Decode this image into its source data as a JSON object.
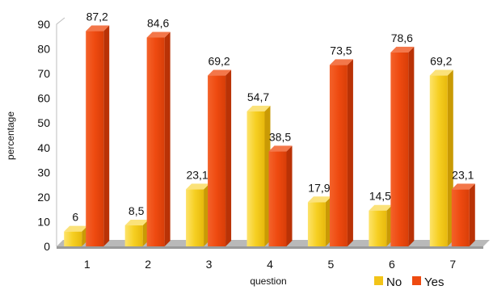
{
  "chart_data": {
    "type": "bar",
    "categories": [
      "1",
      "2",
      "3",
      "4",
      "5",
      "6",
      "7"
    ],
    "series": [
      {
        "name": "No",
        "values": [
          6,
          8.5,
          23.1,
          54.7,
          17.9,
          14.5,
          69.2
        ],
        "labels": [
          "6",
          "8,5",
          "23,1",
          "54,7",
          "17,9",
          "14,5",
          "69,2"
        ],
        "color": "#f2c418"
      },
      {
        "name": "Yes",
        "values": [
          87.2,
          84.6,
          69.2,
          38.5,
          73.5,
          78.6,
          23.1
        ],
        "labels": [
          "87,2",
          "84,6",
          "69,2",
          "38,5",
          "73,5",
          "78,6",
          "23,1"
        ],
        "color": "#ee4a10"
      }
    ],
    "xlabel": "question",
    "ylabel": "percentage",
    "ylim": [
      0,
      90
    ],
    "yticks": [
      0,
      10,
      20,
      30,
      40,
      50,
      60,
      70,
      80,
      90
    ],
    "grid": false,
    "legend_position": "bottom-right"
  }
}
